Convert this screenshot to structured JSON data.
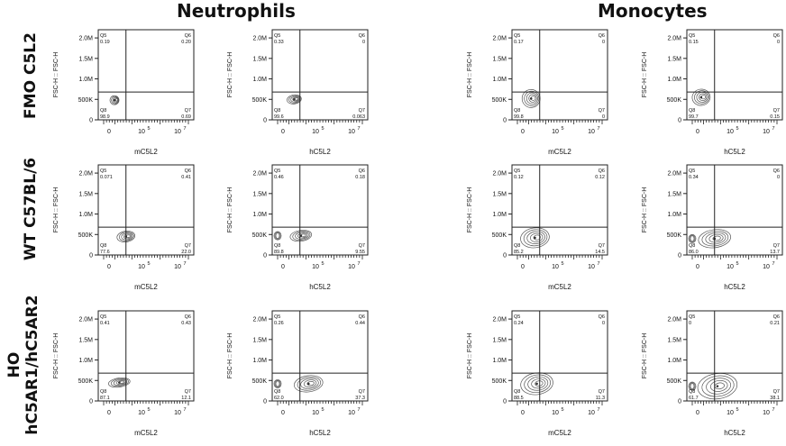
{
  "columns": [
    "Neutrophils",
    "Monocytes"
  ],
  "rows": [
    "FMO C5L2",
    "WT C57BL/6",
    "HO\nhC5AR1/hC5AR2"
  ],
  "axis": {
    "ylabel": "FSC-H :: FSC-H",
    "yticks": [
      "2.0M",
      "1.5M",
      "1.0M",
      "500K",
      "0"
    ],
    "xticks": [
      "0",
      "10^5",
      "10^7"
    ]
  },
  "chart_data": [
    {
      "type": "scatter",
      "row": "FMO C5L2",
      "population": "Neutrophils",
      "xlabel": "mC5L2",
      "ylabel": "FSC-H :: FSC-H",
      "quadrants": {
        "Q5": "0.19",
        "Q6": "0.20",
        "Q7": "0.69",
        "Q8": "98.9"
      }
    },
    {
      "type": "scatter",
      "row": "FMO C5L2",
      "population": "Neutrophils",
      "xlabel": "hC5L2",
      "ylabel": "FSC-H :: FSC-H",
      "quadrants": {
        "Q5": "0.33",
        "Q6": "0",
        "Q7": "0.063",
        "Q8": "99.6"
      }
    },
    {
      "type": "scatter",
      "row": "FMO C5L2",
      "population": "Monocytes",
      "xlabel": "mC5L2",
      "ylabel": "FSC-H :: FSC-H",
      "quadrants": {
        "Q5": "0.17",
        "Q6": "0",
        "Q7": "0",
        "Q8": "99.8"
      }
    },
    {
      "type": "scatter",
      "row": "FMO C5L2",
      "population": "Monocytes",
      "xlabel": "hC5L2",
      "ylabel": "FSC-H :: FSC-H",
      "quadrants": {
        "Q5": "0.15",
        "Q6": "0",
        "Q7": "0.15",
        "Q8": "99.7"
      }
    },
    {
      "type": "scatter",
      "row": "WT C57BL/6",
      "population": "Neutrophils",
      "xlabel": "mC5L2",
      "ylabel": "FSC-H :: FSC-H",
      "quadrants": {
        "Q5": "0.071",
        "Q6": "0.41",
        "Q7": "22.0",
        "Q8": "77.6"
      }
    },
    {
      "type": "scatter",
      "row": "WT C57BL/6",
      "population": "Neutrophils",
      "xlabel": "hC5L2",
      "ylabel": "FSC-H :: FSC-H",
      "quadrants": {
        "Q5": "0.46",
        "Q6": "0.18",
        "Q7": "9.55",
        "Q8": "89.8"
      }
    },
    {
      "type": "scatter",
      "row": "WT C57BL/6",
      "population": "Monocytes",
      "xlabel": "mC5L2",
      "ylabel": "FSC-H :: FSC-H",
      "quadrants": {
        "Q5": "0.12",
        "Q6": "0.12",
        "Q7": "14.5",
        "Q8": "85.2"
      }
    },
    {
      "type": "scatter",
      "row": "WT C57BL/6",
      "population": "Monocytes",
      "xlabel": "hC5L2",
      "ylabel": "FSC-H :: FSC-H",
      "quadrants": {
        "Q5": "0.34",
        "Q6": "0",
        "Q7": "13.7",
        "Q8": "86.0"
      }
    },
    {
      "type": "scatter",
      "row": "HO hC5AR1/hC5AR2",
      "population": "Neutrophils",
      "xlabel": "mC5L2",
      "ylabel": "FSC-H :: FSC-H",
      "quadrants": {
        "Q5": "0.41",
        "Q6": "0.43",
        "Q7": "12.1",
        "Q8": "87.1"
      }
    },
    {
      "type": "scatter",
      "row": "HO hC5AR1/hC5AR2",
      "population": "Neutrophils",
      "xlabel": "hC5L2",
      "ylabel": "FSC-H :: FSC-H",
      "quadrants": {
        "Q5": "0.26",
        "Q6": "0.44",
        "Q7": "37.3",
        "Q8": "62.0"
      }
    },
    {
      "type": "scatter",
      "row": "HO hC5AR1/hC5AR2",
      "population": "Monocytes",
      "xlabel": "mC5L2",
      "ylabel": "FSC-H :: FSC-H",
      "quadrants": {
        "Q5": "0.24",
        "Q6": "0",
        "Q7": "11.3",
        "Q8": "88.5"
      }
    },
    {
      "type": "scatter",
      "row": "HO hC5AR1/hC5AR2",
      "population": "Monocytes",
      "xlabel": "hC5L2",
      "ylabel": "FSC-H :: FSC-H",
      "quadrants": {
        "Q5": "0",
        "Q6": "0.21",
        "Q7": "38.1",
        "Q8": "61.7"
      }
    }
  ]
}
